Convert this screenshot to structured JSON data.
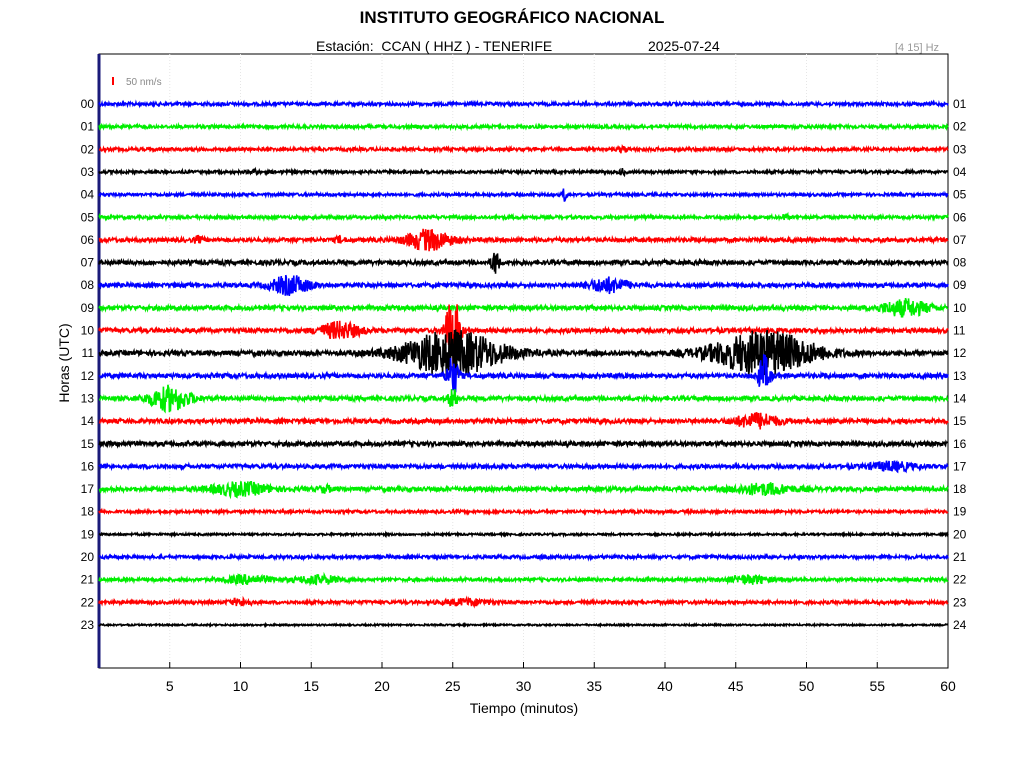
{
  "header": {
    "title": "INSTITUTO GEOGRÁFICO NACIONAL",
    "station_text": "Estación:  CCAN ( HHZ ) - TENERIFE",
    "date_text": "2025-07-24",
    "filter_text": "[4 15] Hz"
  },
  "scale_label": "50 nm/s",
  "chart_data": {
    "type": "line",
    "xlabel": "Tiempo (minutos)",
    "ylabel": "Horas (UTC)",
    "xlim": [
      0,
      60
    ],
    "x_ticks": [
      5,
      10,
      15,
      20,
      25,
      30,
      35,
      40,
      45,
      50,
      55,
      60
    ],
    "left_hour_labels": [
      "00",
      "01",
      "02",
      "03",
      "04",
      "05",
      "06",
      "07",
      "08",
      "09",
      "10",
      "11",
      "12",
      "13",
      "14",
      "15",
      "16",
      "17",
      "18",
      "19",
      "20",
      "21",
      "22",
      "23"
    ],
    "right_hour_labels": [
      "01",
      "02",
      "03",
      "04",
      "05",
      "06",
      "07",
      "08",
      "09",
      "10",
      "11",
      "12",
      "13",
      "14",
      "15",
      "16",
      "17",
      "18",
      "19",
      "20",
      "21",
      "22",
      "23",
      "24"
    ],
    "trace_colors": [
      "#0000ff",
      "#00ee00",
      "#ff0000",
      "#000000"
    ],
    "traces": [
      {
        "hour": "00",
        "color": "#0000ff",
        "noise": 1.6,
        "events": []
      },
      {
        "hour": "01",
        "color": "#00ee00",
        "noise": 1.6,
        "events": []
      },
      {
        "hour": "02",
        "color": "#ff0000",
        "noise": 1.6,
        "events": [
          {
            "t": 37,
            "amp": 3,
            "dur": 0.3
          }
        ]
      },
      {
        "hour": "03",
        "color": "#000000",
        "noise": 1.4,
        "events": [
          {
            "t": 11,
            "amp": 3,
            "dur": 0.2
          },
          {
            "t": 37,
            "amp": 3,
            "dur": 0.2
          }
        ]
      },
      {
        "hour": "04",
        "color": "#0000ff",
        "noise": 1.4,
        "events": [
          {
            "t": 32.9,
            "amp": 7,
            "dur": 0.15
          }
        ]
      },
      {
        "hour": "05",
        "color": "#00ee00",
        "noise": 1.6,
        "events": [
          {
            "t": 48.5,
            "amp": 3,
            "dur": 0.2
          }
        ]
      },
      {
        "hour": "06",
        "color": "#ff0000",
        "noise": 2.0,
        "events": [
          {
            "t": 23.3,
            "amp": 10,
            "dur": 1.6
          },
          {
            "t": 7,
            "amp": 3,
            "dur": 0.3
          },
          {
            "t": 17,
            "amp": 3,
            "dur": 0.3
          }
        ]
      },
      {
        "hour": "07",
        "color": "#000000",
        "noise": 2.2,
        "events": [
          {
            "t": 28,
            "amp": 13,
            "dur": 0.25
          }
        ]
      },
      {
        "hour": "08",
        "color": "#0000ff",
        "noise": 2.0,
        "events": [
          {
            "t": 13.5,
            "amp": 9,
            "dur": 1.4
          },
          {
            "t": 36,
            "amp": 7,
            "dur": 1.4
          }
        ]
      },
      {
        "hour": "09",
        "color": "#00ee00",
        "noise": 2.2,
        "events": [
          {
            "t": 57,
            "amp": 8,
            "dur": 1.6
          }
        ]
      },
      {
        "hour": "10",
        "color": "#ff0000",
        "noise": 2.2,
        "events": [
          {
            "t": 17,
            "amp": 8,
            "dur": 1.4
          },
          {
            "t": 25,
            "amp": 36,
            "dur": 0.5
          }
        ]
      },
      {
        "hour": "11",
        "color": "#000000",
        "noise": 2.4,
        "events": [
          {
            "t": 25,
            "amp": 22,
            "dur": 3.5
          },
          {
            "t": 47,
            "amp": 22,
            "dur": 3.5
          }
        ]
      },
      {
        "hour": "12",
        "color": "#0000ff",
        "noise": 2.2,
        "events": [
          {
            "t": 25,
            "amp": 20,
            "dur": 0.4
          },
          {
            "t": 47,
            "amp": 20,
            "dur": 0.4
          }
        ]
      },
      {
        "hour": "13",
        "color": "#00ee00",
        "noise": 2.2,
        "events": [
          {
            "t": 5,
            "amp": 12,
            "dur": 1.4
          },
          {
            "t": 25,
            "amp": 10,
            "dur": 0.3
          }
        ]
      },
      {
        "hour": "14",
        "color": "#ff0000",
        "noise": 2.2,
        "events": [
          {
            "t": 46.5,
            "amp": 7,
            "dur": 1.5
          }
        ]
      },
      {
        "hour": "15",
        "color": "#000000",
        "noise": 2.2,
        "events": []
      },
      {
        "hour": "16",
        "color": "#0000ff",
        "noise": 2.0,
        "events": [
          {
            "t": 56,
            "amp": 4,
            "dur": 1.6
          }
        ]
      },
      {
        "hour": "17",
        "color": "#00ee00",
        "noise": 2.2,
        "events": [
          {
            "t": 10,
            "amp": 6,
            "dur": 2.0
          },
          {
            "t": 47,
            "amp": 5,
            "dur": 2.0
          },
          {
            "t": 16,
            "amp": 3,
            "dur": 0.4
          }
        ]
      },
      {
        "hour": "18",
        "color": "#ff0000",
        "noise": 1.4,
        "events": []
      },
      {
        "hour": "19",
        "color": "#000000",
        "noise": 1.0,
        "events": []
      },
      {
        "hour": "20",
        "color": "#0000ff",
        "noise": 1.6,
        "events": []
      },
      {
        "hour": "21",
        "color": "#00ee00",
        "noise": 1.6,
        "events": [
          {
            "t": 10.5,
            "amp": 4,
            "dur": 1.6
          },
          {
            "t": 15.5,
            "amp": 4,
            "dur": 1.6
          },
          {
            "t": 46,
            "amp": 4,
            "dur": 1.4
          }
        ]
      },
      {
        "hour": "22",
        "color": "#ff0000",
        "noise": 1.6,
        "events": [
          {
            "t": 10,
            "amp": 3,
            "dur": 0.8
          },
          {
            "t": 26,
            "amp": 3,
            "dur": 1.6
          }
        ]
      },
      {
        "hour": "23",
        "color": "#000000",
        "noise": 0.8,
        "events": []
      }
    ]
  }
}
